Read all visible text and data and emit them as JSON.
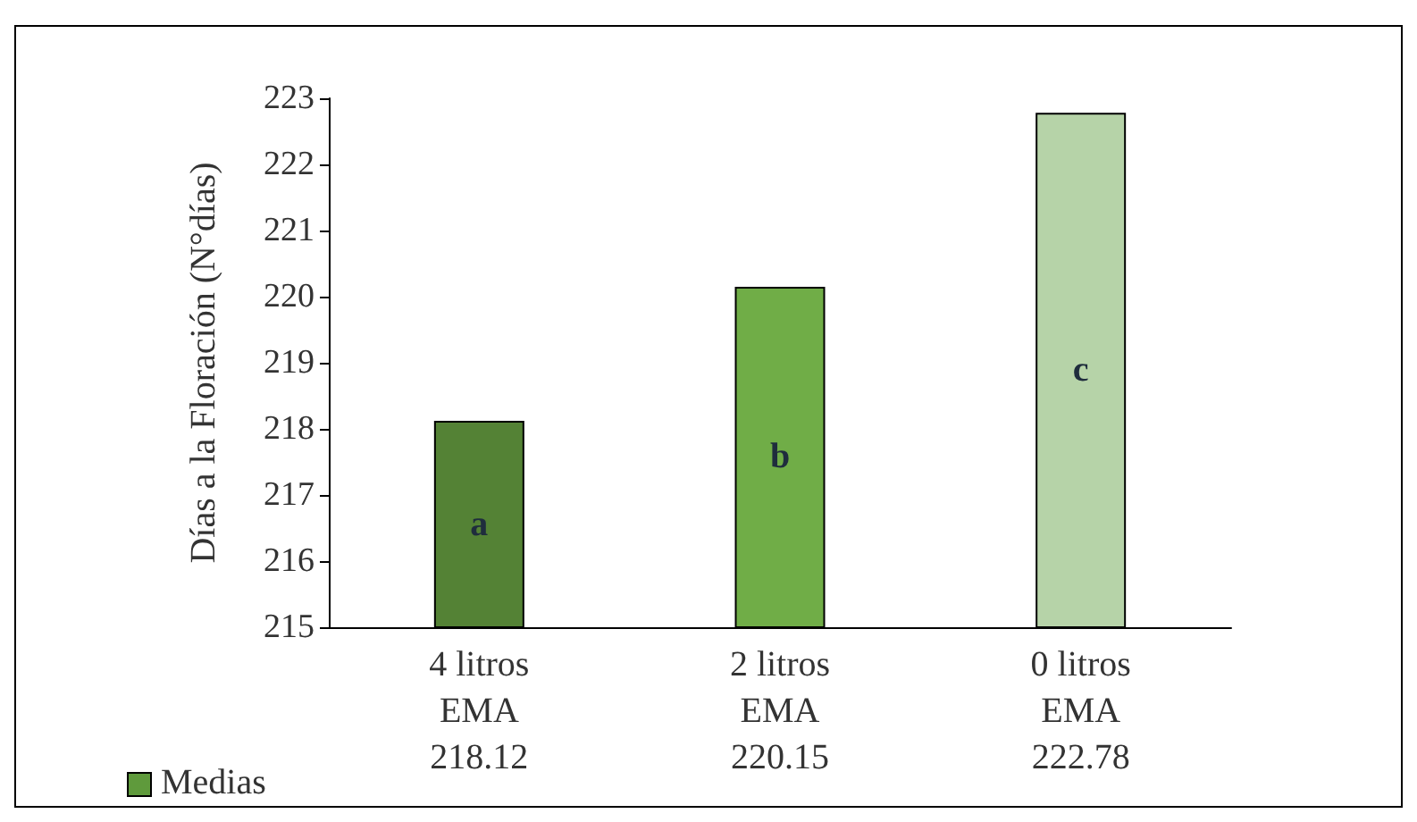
{
  "chart_data": {
    "type": "bar",
    "ylabel": "Días a la Floración (N°días)",
    "categories": [
      "4 litros\nEMA",
      "2 litros\nEMA",
      "0 litros\nEMA"
    ],
    "series": [
      {
        "name": "Medias",
        "color": "#5f9a3c",
        "colors": [
          "#548235",
          "#70ad47",
          "#b6d3a8"
        ],
        "values": [
          218.12,
          220.15,
          222.78
        ]
      }
    ],
    "ylim": [
      215,
      223
    ],
    "yticks": [
      215,
      216,
      217,
      218,
      219,
      220,
      221,
      222,
      223
    ],
    "grid": false,
    "legend": "bottom left",
    "data_labels": true,
    "annotations": [
      "a",
      "b",
      "c"
    ]
  }
}
